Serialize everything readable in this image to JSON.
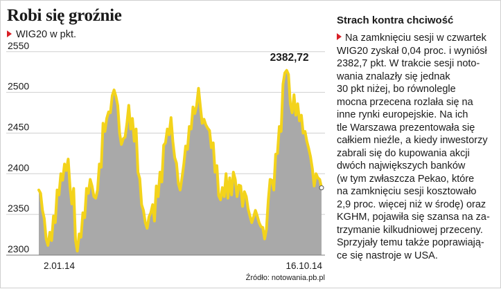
{
  "title": "Robi się groźnie",
  "subtitle": "WIG20 w pkt.",
  "source": "Źródło: notowania.pb.pl",
  "side_title": "Strach kontra chciwość",
  "side_lines": [
    "Na zamknięciu sesji w czwartek",
    "WIG20 zyskał 0,04 proc. i wyniósł",
    "2382,7 pkt. W trakcie sesji noto-",
    "wania znalazły się jednak",
    "30 pkt niżej, bo równolegle",
    "mocna przecena rozlała się na",
    "inne rynki europejskie. Na ich",
    "tle Warszawa prezentowała się",
    "całkiem nieźle, a kiedy inwestorzy",
    "zabrali się do kupowania akcji",
    "dwóch największych banków",
    "(w tym zwłaszcza Pekao, które",
    "na zamknięciu sesji kosztowało",
    "2,9 proc. więcej niż w środę) oraz",
    "KGHM, pojawiła się szansa na za-",
    "trzymanie kilkudniowej przeceny.",
    "Sprzyjały temu także poprawiają-",
    "ce się nastroje w USA."
  ],
  "colors": {
    "line": "#f3d31b",
    "area": "#a9a9a9",
    "grid": "#cfcfcf",
    "accent": "#d81f26",
    "text": "#1a1a1a"
  },
  "chart_data": {
    "type": "area",
    "series_name": "WIG20",
    "unit": "pkt.",
    "ylim": [
      2300,
      2560
    ],
    "yticks": [
      2300,
      2350,
      2400,
      2450,
      2500,
      2550
    ],
    "ytick_labels": [
      "2300",
      "2350",
      "2400",
      "2450",
      "2500",
      "2550"
    ],
    "xtick_labels": [
      "2.01.14",
      "16.10.14"
    ],
    "x_start": "2014-01-02",
    "x_end": "2014-10-16",
    "annotation_label": "2382,72",
    "peak_annotation_label": "2382,72",
    "grid": true,
    "values": [
      2380,
      2376,
      2355,
      2345,
      2320,
      2312,
      2328,
      2318,
      2348,
      2340,
      2380,
      2374,
      2400,
      2392,
      2412,
      2404,
      2418,
      2384,
      2363,
      2382,
      2318,
      2305,
      2326,
      2322,
      2352,
      2346,
      2382,
      2376,
      2393,
      2385,
      2372,
      2370,
      2380,
      2412,
      2408,
      2462,
      2452,
      2468,
      2476,
      2475,
      2496,
      2503,
      2495,
      2484,
      2450,
      2436,
      2443,
      2445,
      2462,
      2484,
      2455,
      2468,
      2440,
      2455,
      2402,
      2394,
      2362,
      2355,
      2340,
      2333,
      2347,
      2352,
      2362,
      2342,
      2385,
      2372,
      2402,
      2390,
      2435,
      2438,
      2455,
      2448,
      2469,
      2440,
      2420,
      2413,
      2388,
      2380,
      2395,
      2412,
      2434,
      2430,
      2458,
      2455,
      2482,
      2474,
      2484,
      2505,
      2483,
      2462,
      2467,
      2460,
      2456,
      2453,
      2432,
      2438,
      2402,
      2410,
      2373,
      2368,
      2383,
      2372,
      2400,
      2370,
      2395,
      2374,
      2402,
      2393,
      2372,
      2386,
      2385,
      2360,
      2378,
      2372,
      2357,
      2348,
      2340,
      2347,
      2355,
      2348,
      2340,
      2335,
      2334,
      2320,
      2332,
      2368,
      2393,
      2392,
      2380,
      2424,
      2425,
      2458,
      2452,
      2510,
      2524,
      2527,
      2522,
      2486,
      2475,
      2497,
      2472,
      2486,
      2465,
      2472,
      2450,
      2452,
      2440,
      2431,
      2421,
      2406,
      2385,
      2400,
      2395,
      2393,
      2382.72
    ]
  }
}
